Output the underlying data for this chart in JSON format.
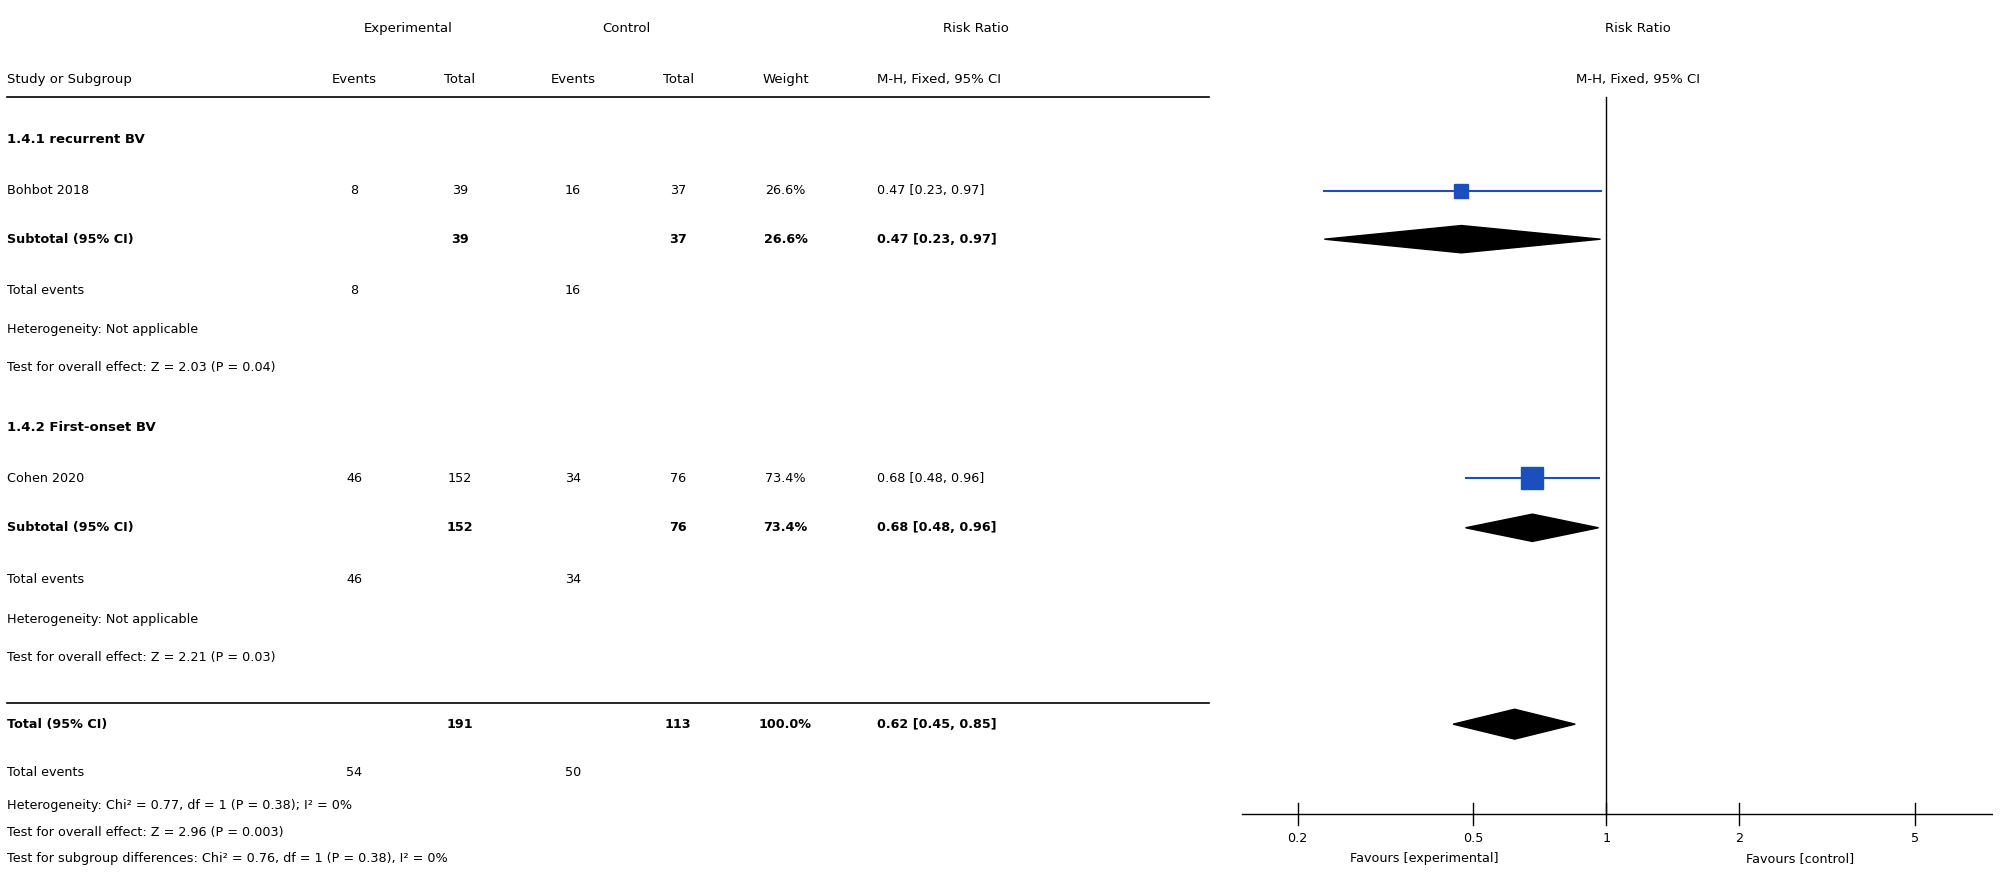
{
  "title": "",
  "col_headers": {
    "experimental": "Experimental",
    "control": "Control",
    "risk_ratio": "Risk Ratio",
    "risk_ratio_label": "M-H, Fixed, 95% CI"
  },
  "subgroup1_header": "1.4.1 recurrent BV",
  "subgroup1_studies": [
    {
      "name": "Bohbot 2018",
      "exp_events": 8,
      "exp_total": 39,
      "ctrl_events": 16,
      "ctrl_total": 37,
      "weight": "26.6%",
      "rr_text": "0.47 [0.23, 0.97]",
      "rr": 0.47,
      "ci_low": 0.23,
      "ci_high": 0.97
    }
  ],
  "subgroup1_subtotal": {
    "name": "Subtotal (95% CI)",
    "exp_total": 39,
    "ctrl_total": 37,
    "weight": "26.6%",
    "rr_text": "0.47 [0.23, 0.97]",
    "rr": 0.47,
    "ci_low": 0.23,
    "ci_high": 0.97
  },
  "subgroup1_total_events": {
    "exp": 8,
    "ctrl": 16
  },
  "subgroup1_hetero": "Heterogeneity: Not applicable",
  "subgroup1_test": "Test for overall effect: Z = 2.03 (P = 0.04)",
  "subgroup2_header": "1.4.2 First-onset BV",
  "subgroup2_studies": [
    {
      "name": "Cohen 2020",
      "exp_events": 46,
      "exp_total": 152,
      "ctrl_events": 34,
      "ctrl_total": 76,
      "weight": "73.4%",
      "rr_text": "0.68 [0.48, 0.96]",
      "rr": 0.68,
      "ci_low": 0.48,
      "ci_high": 0.96
    }
  ],
  "subgroup2_subtotal": {
    "name": "Subtotal (95% CI)",
    "exp_total": 152,
    "ctrl_total": 76,
    "weight": "73.4%",
    "rr_text": "0.68 [0.48, 0.96]",
    "rr": 0.68,
    "ci_low": 0.48,
    "ci_high": 0.96
  },
  "subgroup2_total_events": {
    "exp": 46,
    "ctrl": 34
  },
  "subgroup2_hetero": "Heterogeneity: Not applicable",
  "subgroup2_test": "Test for overall effect: Z = 2.21 (P = 0.03)",
  "total": {
    "name": "Total (95% CI)",
    "exp_total": 191,
    "ctrl_total": 113,
    "weight": "100.0%",
    "rr_text": "0.62 [0.45, 0.85]",
    "rr": 0.62,
    "ci_low": 0.45,
    "ci_high": 0.85
  },
  "total_events": {
    "exp": 54,
    "ctrl": 50
  },
  "total_hetero": "Heterogeneity: Chi² = 0.77, df = 1 (P = 0.38); I² = 0%",
  "total_test": "Test for overall effect: Z = 2.96 (P = 0.003)",
  "total_subgroup": "Test for subgroup differences: Chi² = 0.76, df = 1 (P = 0.38), I² = 0%",
  "axis_ticks": [
    0.2,
    0.5,
    1,
    2,
    5
  ],
  "favours_left": "Favours [experimental]",
  "favours_right": "Favours [control]",
  "study_color": "#1a4fbd",
  "diamond_color": "#000000",
  "text_color": "#000000",
  "bg_color": "#ffffff"
}
